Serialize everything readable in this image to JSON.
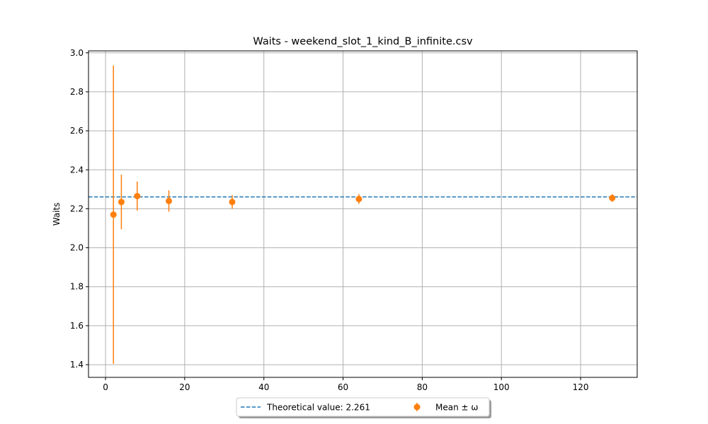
{
  "chart_data": {
    "type": "scatter",
    "title": "Waits - weekend_slot_1_kind_B_infinite.csv",
    "xlabel": "",
    "ylabel": "Waits",
    "xlim": [
      -4.3,
      134.3
    ],
    "ylim": [
      1.335,
      3.01
    ],
    "x_ticks": [
      0,
      20,
      40,
      60,
      80,
      100,
      120
    ],
    "y_ticks": [
      1.4,
      1.6,
      1.8,
      2.0,
      2.2,
      2.4,
      2.6,
      2.8,
      3.0
    ],
    "x_tick_labels": [
      "0",
      "20",
      "40",
      "60",
      "80",
      "100",
      "120"
    ],
    "y_tick_labels": [
      "1.4",
      "1.6",
      "1.8",
      "2.0",
      "2.2",
      "2.4",
      "2.6",
      "2.8",
      "3.0"
    ],
    "grid": true,
    "legend_position": "bottom-center",
    "theoretical": {
      "label": "Theoretical value: 2.261",
      "value": 2.261,
      "color": "#1f77b4",
      "style": "dashed"
    },
    "series": [
      {
        "name": "Mean ± ω",
        "color": "#ff7f0e",
        "x": [
          2,
          4,
          8,
          16,
          32,
          64,
          128
        ],
        "y": [
          2.17,
          2.235,
          2.265,
          2.24,
          2.235,
          2.25,
          2.255
        ],
        "err": [
          0.765,
          0.14,
          0.075,
          0.055,
          0.035,
          0.025,
          0.02
        ]
      }
    ]
  }
}
